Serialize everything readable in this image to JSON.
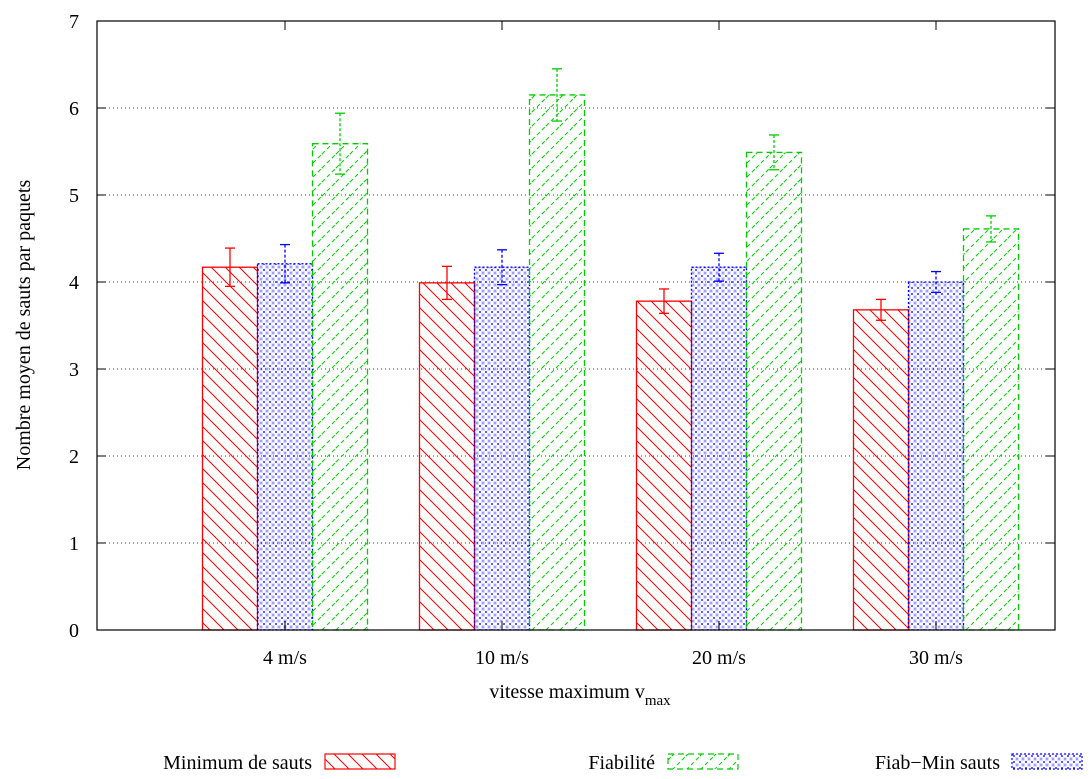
{
  "chart_data": {
    "type": "bar",
    "title": "",
    "xlabel": "vitesse maximum v",
    "xlabel_sub": "max",
    "ylabel": "Nombre moyen de sauts par paquets",
    "ylim": [
      0,
      7
    ],
    "yticks": [
      "0",
      "1",
      "2",
      "3",
      "4",
      "5",
      "6",
      "7"
    ],
    "grid": true,
    "categories": [
      "4 m/s",
      "10 m/s",
      "20 m/s",
      "30 m/s"
    ],
    "series": [
      {
        "name": "Minimum de sauts",
        "color": "#ff0000",
        "pattern": "back-diagonal-hatch",
        "values": [
          4.17,
          3.99,
          3.78,
          3.68
        ],
        "err": [
          0.22,
          0.19,
          0.14,
          0.12
        ]
      },
      {
        "name": "Fiab−Min sauts",
        "color": "#0000ff",
        "pattern": "dotted-crosshatch",
        "values": [
          4.21,
          4.17,
          4.17,
          4.0
        ],
        "err": [
          0.22,
          0.2,
          0.16,
          0.12
        ]
      },
      {
        "name": "Fiabilité",
        "color": "#00cc00",
        "pattern": "forward-diagonal-hatch",
        "values": [
          5.59,
          6.15,
          5.49,
          4.61
        ],
        "err": [
          0.35,
          0.3,
          0.2,
          0.15
        ]
      }
    ],
    "legend": {
      "placement": "bottom",
      "order": [
        "Minimum de sauts",
        "Fiabilité",
        "Fiab−Min sauts"
      ]
    }
  }
}
